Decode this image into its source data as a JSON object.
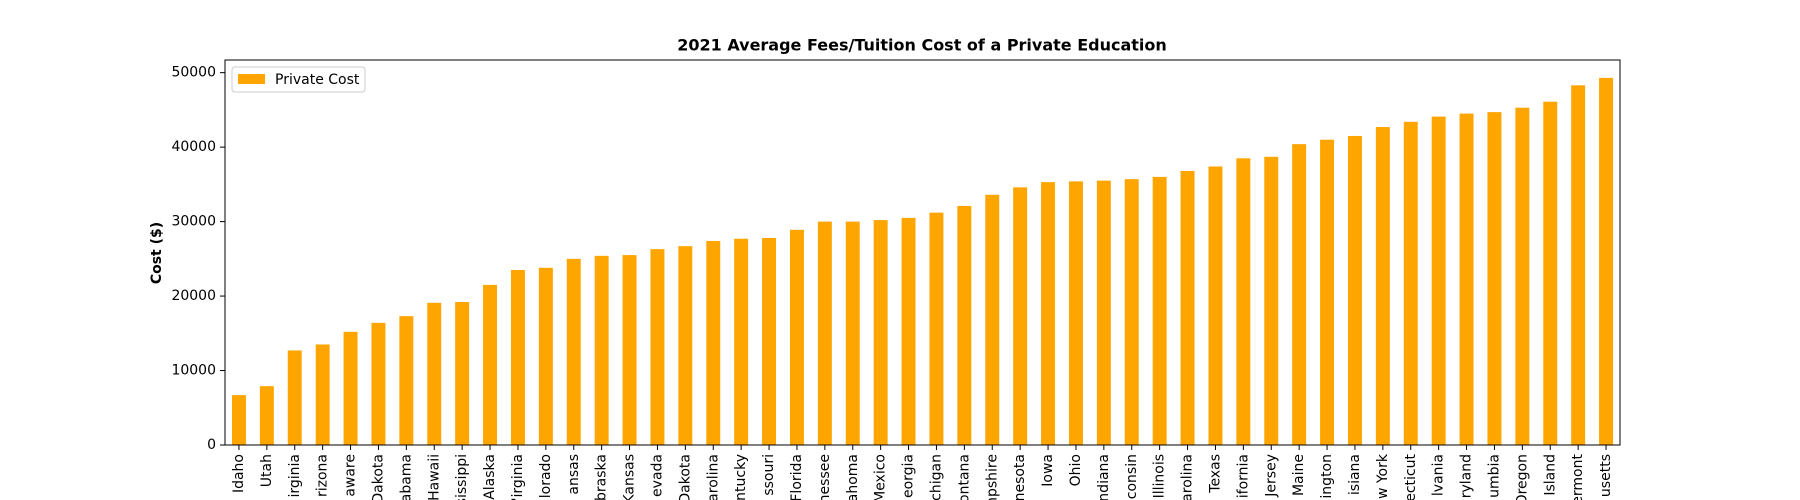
{
  "chart_data": {
    "type": "bar",
    "title": "2021 Average Fees/Tuition Cost of a Private Education",
    "y_label": "Cost ($)",
    "categories": [
      "Idaho",
      "Utah",
      "irginia",
      "rizona",
      "aware",
      "Dakota",
      "abama",
      "Hawaii",
      "ississippi",
      "Alaska",
      "'irginia",
      "lorado",
      "ansas",
      "braska",
      "Kansas",
      "evada",
      "Dakota",
      "arolina",
      "ntucky",
      "ssouri",
      "Florida",
      "nessee",
      "ahoma",
      "Mexico",
      "eorgia",
      "chigan",
      "ontana",
      "npshire",
      "nesota",
      "Iowa",
      "Ohio",
      "ndiana",
      "consin",
      "Illinois",
      "arolina",
      "Texas",
      "ifornia",
      "Jersey",
      "Maine",
      "ington",
      "isiana",
      "w York",
      "necticut",
      "lvania",
      "ryland",
      "umbia",
      "Oregon",
      "Island",
      "ermont",
      "usetts"
    ],
    "series": [
      {
        "name": "Private Cost",
        "color": "#ffa500",
        "values": [
          6700,
          7900,
          12700,
          13500,
          15200,
          16400,
          17300,
          19100,
          19200,
          21500,
          23500,
          23800,
          25000,
          25400,
          25500,
          26300,
          26700,
          27400,
          27700,
          27800,
          28900,
          30000,
          30000,
          30200,
          30500,
          31200,
          32100,
          33600,
          34600,
          35300,
          35400,
          35500,
          35700,
          36000,
          36800,
          37400,
          38500,
          38700,
          40400,
          41000,
          41500,
          42700,
          43400,
          44100,
          44500,
          44700,
          45300,
          46100,
          48300,
          49300
        ]
      }
    ],
    "ylim": [
      0,
      51700
    ],
    "yticks": [
      0,
      10000,
      20000,
      30000,
      40000,
      50000
    ],
    "legend": "upper left",
    "grid": false
  }
}
